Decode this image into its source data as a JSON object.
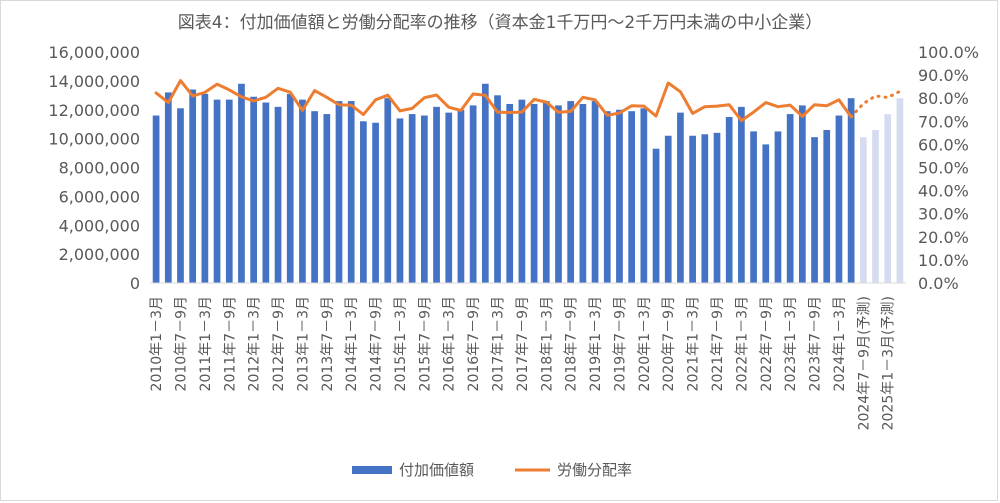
{
  "chart_data": {
    "type": "bar+line",
    "title": "図表4：付加価値額と労働分配率の推移（資本金1千万円～2千万円未満の中小企業）",
    "y_left": {
      "min": 0,
      "max": 16000000,
      "step": 2000000,
      "ticks": [
        "0",
        "2,000,000",
        "4,000,000",
        "6,000,000",
        "8,000,000",
        "10,000,000",
        "12,000,000",
        "14,000,000",
        "16,000,000"
      ]
    },
    "y_right": {
      "min": 0,
      "max": 100,
      "step": 10,
      "ticks": [
        "0.0%",
        "10.0%",
        "20.0%",
        "30.0%",
        "40.0%",
        "50.0%",
        "60.0%",
        "70.0%",
        "80.0%",
        "90.0%",
        "100.0%"
      ]
    },
    "x_labels": [
      "2010年1－3月",
      "2010年7－9月",
      "2011年1－3月",
      "2011年7－9月",
      "2012年1－3月",
      "2012年7－9月",
      "2013年1－3月",
      "2013年7－9月",
      "2014年1－3月",
      "2014年7－9月",
      "2015年1－3月",
      "2015年7－9月",
      "2016年1－3月",
      "2016年7－9月",
      "2017年1－3月",
      "2017年7－9月",
      "2018年1－3月",
      "2018年7－9月",
      "2019年1－3月",
      "2019年7－9月",
      "2020年1－3月",
      "2020年7－9月",
      "2021年1－3月",
      "2021年7－9月",
      "2022年1－3月",
      "2022年7－9月",
      "2023年1－3月",
      "2023年7－9月",
      "2024年1－3月",
      "2024年7－9月(予測)",
      "2025年1－3月(予測)"
    ],
    "legend": {
      "bar_label": "付加価値額",
      "line_label": "労働分配率",
      "position": "bottom"
    },
    "bar_color": "#4472c4",
    "forecast_bar_color": "#d6dcf0",
    "line_color": "#ed7d31",
    "bars": [
      11600000,
      13200000,
      12100000,
      13400000,
      13100000,
      12700000,
      12700000,
      13800000,
      12900000,
      12500000,
      12200000,
      13100000,
      12700000,
      11900000,
      11700000,
      12600000,
      12600000,
      11200000,
      11100000,
      12800000,
      11400000,
      11700000,
      11600000,
      12200000,
      11800000,
      12000000,
      12300000,
      13800000,
      13000000,
      12400000,
      12700000,
      12400000,
      12600000,
      12300000,
      12600000,
      12400000,
      12600000,
      11900000,
      12000000,
      11900000,
      12100000,
      9300000,
      10200000,
      11800000,
      10200000,
      10300000,
      10400000,
      11500000,
      12200000,
      10500000,
      9600000,
      10500000,
      11700000,
      12300000,
      10100000,
      10600000,
      11600000,
      12800000,
      10100000,
      10600000,
      11700000,
      12800000
    ],
    "forecast_from_index": 58,
    "labour_share_pct": [
      82.3,
      78.1,
      87.6,
      81.0,
      82.5,
      86.1,
      83.6,
      80.6,
      78.8,
      80.4,
      84.3,
      82.6,
      74.7,
      83.3,
      80.4,
      77.1,
      77.0,
      72.9,
      79.3,
      81.3,
      74.5,
      75.6,
      80.2,
      81.4,
      76.1,
      74.7,
      81.8,
      81.3,
      74.0,
      73.8,
      74.0,
      79.5,
      78.3,
      73.9,
      74.3,
      80.4,
      79.3,
      72.6,
      73.6,
      76.7,
      76.6,
      72.3,
      86.6,
      82.8,
      73.4,
      76.3,
      76.6,
      77.2,
      70.3,
      74.0,
      78.1,
      76.3,
      77.0,
      72.1,
      77.2,
      76.7,
      79.3,
      71.9,
      77.6,
      81.0,
      80.3,
      83.0
    ]
  }
}
